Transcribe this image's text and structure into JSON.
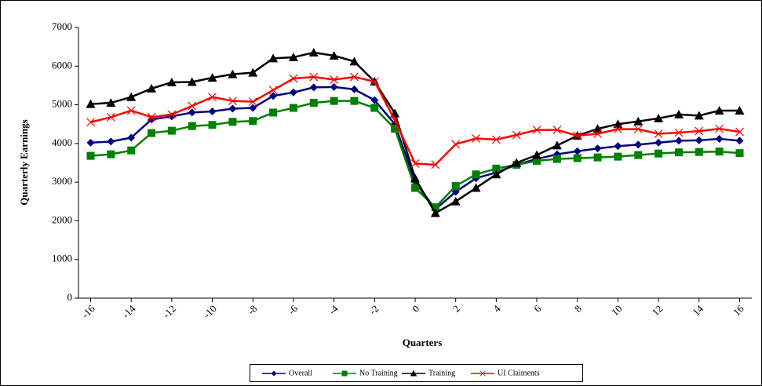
{
  "chart_data": {
    "type": "line",
    "x_label": "Quarters",
    "y_label": "Quarterly Earnings",
    "x": [
      -16,
      -15,
      -14,
      -13,
      -12,
      -11,
      -10,
      -9,
      -8,
      -7,
      -6,
      -5,
      -4,
      -3,
      -2,
      -1,
      0,
      1,
      2,
      3,
      4,
      5,
      6,
      7,
      8,
      9,
      10,
      11,
      12,
      13,
      14,
      15,
      16
    ],
    "xlim": [
      -16.6,
      16.6
    ],
    "xticks": [
      -16,
      -14,
      -12,
      -10,
      -8,
      -6,
      -4,
      -2,
      0,
      2,
      4,
      6,
      8,
      10,
      12,
      14,
      16
    ],
    "ylim": [
      0,
      7000
    ],
    "yticks": [
      0,
      1000,
      2000,
      3000,
      4000,
      5000,
      6000,
      7000
    ],
    "legend": "bottom",
    "series": [
      {
        "name": "Overall",
        "color": "#000080",
        "marker": "diamond",
        "values": [
          4020,
          4050,
          4150,
          4620,
          4700,
          4800,
          4830,
          4900,
          4920,
          5230,
          5320,
          5450,
          5460,
          5400,
          5120,
          4500,
          3000,
          2300,
          2750,
          3100,
          3250,
          3450,
          3600,
          3720,
          3800,
          3870,
          3930,
          3970,
          4020,
          4070,
          4080,
          4120,
          4070
        ]
      },
      {
        "name": "No Training",
        "color": "#008000",
        "marker": "square",
        "values": [
          3680,
          3720,
          3820,
          4270,
          4330,
          4450,
          4480,
          4560,
          4580,
          4800,
          4920,
          5050,
          5100,
          5100,
          4920,
          4380,
          2850,
          2350,
          2900,
          3200,
          3350,
          3450,
          3550,
          3600,
          3620,
          3640,
          3660,
          3700,
          3740,
          3770,
          3780,
          3790,
          3750
        ]
      },
      {
        "name": "Training",
        "color": "#000000",
        "marker": "triangle",
        "values": [
          5020,
          5050,
          5200,
          5420,
          5580,
          5590,
          5700,
          5790,
          5830,
          6200,
          6230,
          6350,
          6270,
          6120,
          5600,
          4780,
          3100,
          2200,
          2500,
          2850,
          3200,
          3500,
          3700,
          3950,
          4200,
          4380,
          4500,
          4570,
          4650,
          4750,
          4720,
          4850,
          4850
        ]
      },
      {
        "name": "UI Claiments",
        "color": "#ff0000",
        "marker": "x",
        "values": [
          4550,
          4680,
          4850,
          4680,
          4750,
          4970,
          5200,
          5100,
          5080,
          5380,
          5680,
          5720,
          5650,
          5720,
          5600,
          4600,
          3480,
          3450,
          3980,
          4130,
          4100,
          4220,
          4350,
          4350,
          4200,
          4250,
          4370,
          4370,
          4250,
          4280,
          4320,
          4380,
          4300
        ]
      }
    ]
  }
}
